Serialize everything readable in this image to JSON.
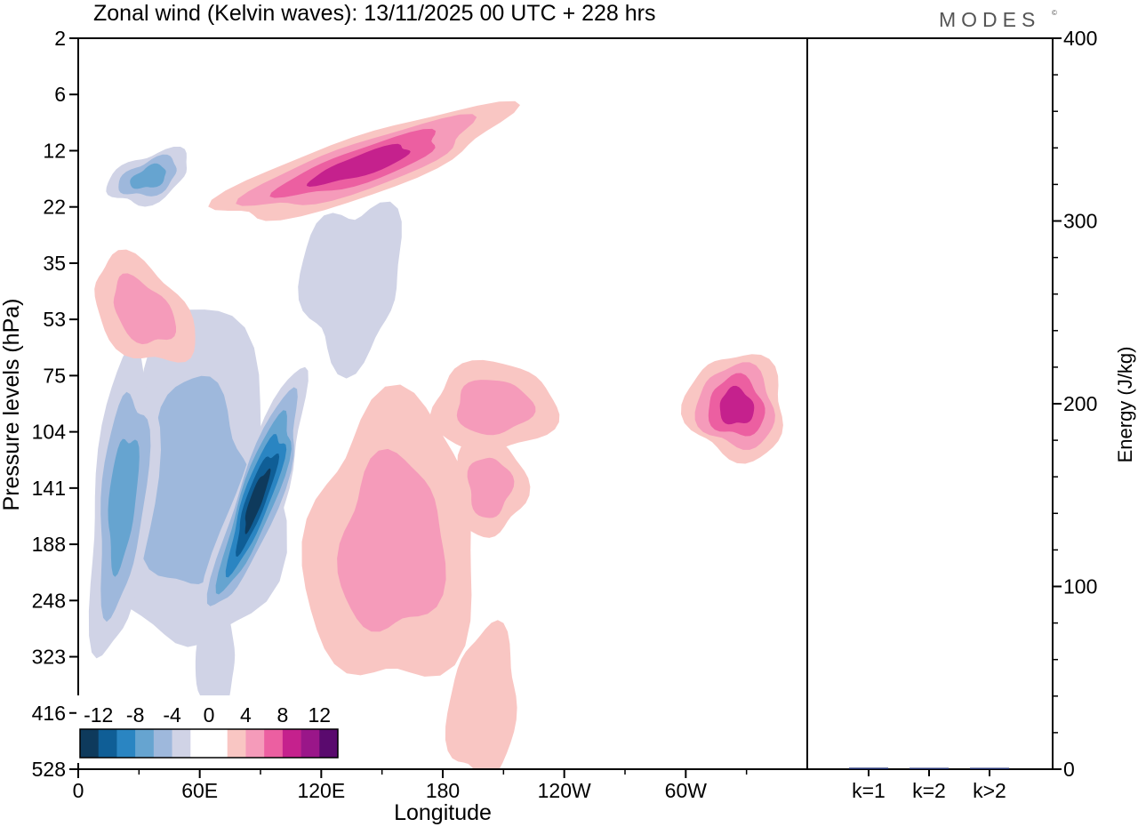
{
  "brand": {
    "name": "MODES",
    "mark": "©"
  },
  "colors": {
    "neg": [
      "#0e3a5c",
      "#0f5e96",
      "#2a85c2",
      "#66a4d0",
      "#9eb8dc",
      "#d0d3e6"
    ],
    "neutral": "#ffffff",
    "pos": [
      "#f9c6c3",
      "#f59bba",
      "#ec5fa1",
      "#c5218d",
      "#9a1689",
      "#5a0a6e"
    ],
    "bar": "#1f2d6b"
  },
  "chart_data": [
    {
      "type": "heatmap",
      "title": "Zonal wind (Kelvin waves):  13/11/2025  00 UTC  + 228 hrs",
      "xlabel": "Longitude",
      "ylabel": "Pressure levels (hPa)",
      "x_ticks": [
        "0",
        "60E",
        "120E",
        "180",
        "120W",
        "60W"
      ],
      "y_ticks": [
        "2",
        "6",
        "12",
        "22",
        "35",
        "53",
        "75",
        "104",
        "141",
        "188",
        "248",
        "323",
        "416",
        "528"
      ],
      "colorbar": {
        "levels": [
          -16,
          -14,
          -12,
          -10,
          -8,
          -6,
          -4,
          -2,
          2,
          4,
          6,
          8,
          10,
          12,
          14
        ],
        "labels": [
          "-12",
          "-8",
          "-4",
          "0",
          "4",
          "8",
          "12"
        ]
      },
      "features": [
        {
          "sign": "neg",
          "lon": 58,
          "p": 140,
          "max": -5
        },
        {
          "sign": "neg",
          "lon": 88,
          "p": 150,
          "max": -12
        },
        {
          "sign": "neg",
          "lon": 22,
          "p": 150,
          "max": -6
        },
        {
          "sign": "neg",
          "lon": 35,
          "p": 16,
          "max": -6
        },
        {
          "sign": "neg",
          "lon": 135,
          "p": 40,
          "max": -3
        },
        {
          "sign": "neg",
          "lon": 68,
          "p": 330,
          "max": -3
        },
        {
          "sign": "pos",
          "lon": 155,
          "p": 190,
          "max": 5
        },
        {
          "sign": "pos",
          "lon": 205,
          "p": 90,
          "max": 5
        },
        {
          "sign": "pos",
          "lon": 203,
          "p": 140,
          "max": 5
        },
        {
          "sign": "pos",
          "lon": 140,
          "p": 14,
          "max": 8
        },
        {
          "sign": "pos",
          "lon": 325,
          "p": 90,
          "max": 8
        },
        {
          "sign": "pos",
          "lon": 32,
          "p": 50,
          "max": 5
        },
        {
          "sign": "pos",
          "lon": 200,
          "p": 400,
          "max": 3
        }
      ]
    },
    {
      "type": "bar",
      "categories": [
        "k=1",
        "k=2",
        "k>2"
      ],
      "values": [
        0.8,
        0.3,
        0.5
      ],
      "ylabel": "Energy (J/kg)",
      "ylim": [
        0,
        400
      ],
      "y_ticks": [
        "0",
        "100",
        "200",
        "300",
        "400"
      ]
    }
  ]
}
